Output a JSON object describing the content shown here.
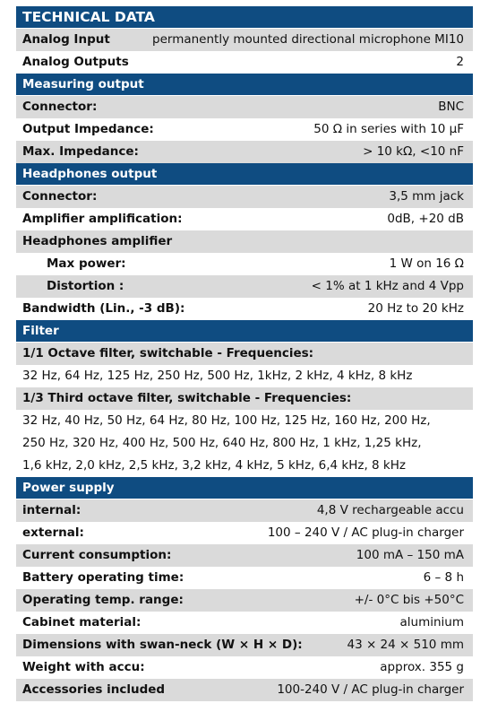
{
  "title": "TECHNICAL DATA",
  "intro": [
    {
      "label": "Analog Input",
      "value": "permanently mounted directional microphone MI10"
    },
    {
      "label": "Analog Outputs",
      "value": "2"
    }
  ],
  "sections": [
    {
      "title": "Measuring output",
      "rows": [
        {
          "label": "Connector:",
          "value": "BNC"
        },
        {
          "label": "Output Impedance:",
          "value": "50 Ω in series with 10 μF"
        },
        {
          "label": "Max. Impedance:",
          "value": "> 10 kΩ, <10 nF"
        }
      ]
    },
    {
      "title": "Headphones output",
      "rows": [
        {
          "label": "Connector:",
          "value": "3,5 mm jack"
        },
        {
          "label": "Amplifier amplification:",
          "value": "0dB,  +20 dB"
        },
        {
          "label": "Headphones amplifier",
          "subrows": [
            {
              "label": "Max power:",
              "value": "1 W on 16 Ω"
            },
            {
              "label": "Distortion :",
              "value": "< 1% at 1 kHz and 4 Vpp"
            }
          ]
        },
        {
          "label": "Bandwidth (Lin., -3 dB):",
          "value": "20 Hz to 20 kHz"
        }
      ]
    },
    {
      "title": "Filter",
      "rows": [
        {
          "label": "1/1 Octave filter, switchable - Frequencies:",
          "lines": [
            "32 Hz, 64 Hz, 125 Hz, 250 Hz, 500 Hz, 1kHz, 2 kHz, 4 kHz, 8 kHz"
          ]
        },
        {
          "label": "1/3 Third octave filter, switchable - Frequencies:",
          "lines": [
            "32 Hz, 40 Hz, 50 Hz, 64 Hz, 80 Hz, 100 Hz, 125 Hz, 160 Hz, 200 Hz,",
            "250 Hz, 320 Hz, 400 Hz, 500 Hz, 640 Hz,  800 Hz, 1 kHz, 1,25 kHz,",
            "1,6 kHz, 2,0 kHz, 2,5 kHz, 3,2 kHz, 4 kHz, 5 kHz, 6,4 kHz, 8 kHz"
          ]
        }
      ]
    },
    {
      "title": "Power supply",
      "rows": [
        {
          "label": "internal:",
          "value": "4,8 V rechargeable accu"
        },
        {
          "label": "external:",
          "value": "100 – 240 V / AC plug-in charger"
        },
        {
          "label": "Current consumption:",
          "value": "100 mA – 150 mA"
        },
        {
          "label": "Battery operating time:",
          "value": "6 – 8 h"
        },
        {
          "label": "Operating temp. range:",
          "value": "+/- 0°C bis +50°C"
        },
        {
          "label": "Cabinet material:",
          "value": "aluminium"
        },
        {
          "label": "Dimensions with swan-neck  (W × H × D):",
          "value": "43 × 24 × 510 mm"
        },
        {
          "label": "Weight with accu:",
          "value": "approx. 355 g"
        },
        {
          "label": "Accessories included",
          "value": "100-240 V / AC plug-in charger"
        }
      ]
    }
  ]
}
